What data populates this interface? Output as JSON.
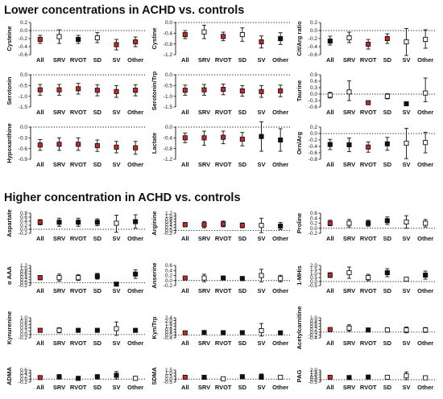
{
  "headings": {
    "lower": "Lower concentrations in ACHD vs. controls",
    "higher": "Higher concentration in ACHD vs. controls"
  },
  "colors": {
    "red": "#c62828",
    "black": "#111111",
    "white": "#ffffff"
  },
  "groups": [
    "All",
    "SRV",
    "RVOT",
    "SD",
    "SV",
    "Other"
  ],
  "marker_fill": [
    "red",
    "white",
    "black",
    "white",
    "black",
    "black"
  ],
  "chart_data": [
    {
      "type": "scatter",
      "ylabel": "Cysteine",
      "ylim": [
        -0.6,
        0.2
      ],
      "yticks": [
        "-0.6",
        "-0.4",
        "-0.2",
        "0.0",
        "0.2"
      ],
      "fill": [
        "red",
        "white",
        "black",
        "white",
        "red",
        "red"
      ],
      "points": [
        {
          "y": -0.22,
          "lo": -0.32,
          "hi": -0.12
        },
        {
          "y": -0.15,
          "lo": -0.32,
          "hi": 0.02
        },
        {
          "y": -0.22,
          "lo": -0.32,
          "hi": -0.12
        },
        {
          "y": -0.18,
          "lo": -0.3,
          "hi": -0.05
        },
        {
          "y": -0.35,
          "lo": -0.48,
          "hi": -0.22
        },
        {
          "y": -0.28,
          "lo": -0.4,
          "hi": -0.16
        }
      ]
    },
    {
      "type": "scatter",
      "ylabel": "Cystine",
      "ylim": [
        -1.2,
        0.0
      ],
      "yticks": [
        "-1.2",
        "-0.8",
        "-0.4",
        "0.0"
      ],
      "fill": [
        "red",
        "white",
        "red",
        "white",
        "red",
        "black"
      ],
      "points": [
        {
          "y": -0.45,
          "lo": -0.6,
          "hi": -0.3
        },
        {
          "y": -0.35,
          "lo": -0.6,
          "hi": -0.1
        },
        {
          "y": -0.52,
          "lo": -0.68,
          "hi": -0.36
        },
        {
          "y": -0.45,
          "lo": -0.7,
          "hi": -0.2
        },
        {
          "y": -0.72,
          "lo": -0.95,
          "hi": -0.5
        },
        {
          "y": -0.6,
          "lo": -0.82,
          "hi": -0.38
        }
      ]
    },
    {
      "type": "scatter",
      "ylabel": "Cit/Arg ratio",
      "ylim": [
        -0.6,
        0.2
      ],
      "yticks": [
        "-0.6",
        "-0.4",
        "-0.2",
        "0.0",
        "0.2"
      ],
      "fill": [
        "black",
        "white",
        "red",
        "red",
        "white",
        "white"
      ],
      "points": [
        {
          "y": -0.26,
          "lo": -0.36,
          "hi": -0.14
        },
        {
          "y": -0.18,
          "lo": -0.3,
          "hi": -0.04
        },
        {
          "y": -0.34,
          "lo": -0.46,
          "hi": -0.22
        },
        {
          "y": -0.2,
          "lo": -0.32,
          "hi": -0.08
        },
        {
          "y": -0.28,
          "lo": -0.62,
          "hi": 0.05
        },
        {
          "y": -0.22,
          "lo": -0.44,
          "hi": 0.02
        }
      ]
    },
    {
      "type": "scatter",
      "ylabel": "Serotonin",
      "ylim": [
        -1.5,
        0.0
      ],
      "yticks": [
        "-1.5",
        "-1.0",
        "-0.5",
        "0.0"
      ],
      "fill": [
        "red",
        "red",
        "red",
        "red",
        "red",
        "red"
      ],
      "points": [
        {
          "y": -0.7,
          "lo": -0.95,
          "hi": -0.45
        },
        {
          "y": -0.7,
          "lo": -0.95,
          "hi": -0.45
        },
        {
          "y": -0.65,
          "lo": -0.9,
          "hi": -0.4
        },
        {
          "y": -0.72,
          "lo": -0.98,
          "hi": -0.46
        },
        {
          "y": -0.78,
          "lo": -1.05,
          "hi": -0.5
        },
        {
          "y": -0.72,
          "lo": -0.98,
          "hi": -0.46
        }
      ]
    },
    {
      "type": "scatter",
      "ylabel": "Serotonin/Trp",
      "ylim": [
        -1.5,
        0.0
      ],
      "yticks": [
        "-1.5",
        "-1.0",
        "-0.5",
        "0.0"
      ],
      "fill": [
        "red",
        "red",
        "red",
        "red",
        "red",
        "red"
      ],
      "points": [
        {
          "y": -0.72,
          "lo": -0.95,
          "hi": -0.48
        },
        {
          "y": -0.7,
          "lo": -0.95,
          "hi": -0.45
        },
        {
          "y": -0.68,
          "lo": -0.93,
          "hi": -0.43
        },
        {
          "y": -0.75,
          "lo": -1.0,
          "hi": -0.5
        },
        {
          "y": -0.78,
          "lo": -1.05,
          "hi": -0.5
        },
        {
          "y": -0.75,
          "lo": -1.02,
          "hi": -0.48
        }
      ]
    },
    {
      "type": "scatter",
      "ylabel": "Taurine",
      "ylim": [
        -0.6,
        0.9
      ],
      "yticks": [
        "-0.6",
        "-0.3",
        "0.0",
        "0.3",
        "0.6",
        "0.9"
      ],
      "fill": [
        "white",
        "white",
        "red",
        "white",
        "black",
        "white"
      ],
      "points": [
        {
          "y": -0.05,
          "lo": -0.18,
          "hi": 0.08
        },
        {
          "y": 0.1,
          "lo": -0.3,
          "hi": 0.62
        },
        {
          "y": -0.4,
          "lo": -0.48,
          "hi": -0.32
        },
        {
          "y": -0.1,
          "lo": -0.22,
          "hi": 0.02
        },
        {
          "y": -0.45,
          "lo": -0.52,
          "hi": -0.38
        },
        {
          "y": 0.05,
          "lo": -0.35,
          "hi": 0.75
        }
      ]
    },
    {
      "type": "scatter",
      "ylabel": "Hypoxanthine",
      "ylim": [
        -0.9,
        0.0
      ],
      "yticks": [
        "-0.9",
        "-0.6",
        "-0.3",
        "0.0"
      ],
      "fill": [
        "red",
        "red",
        "red",
        "red",
        "red",
        "red"
      ],
      "points": [
        {
          "y": -0.5,
          "lo": -0.65,
          "hi": -0.35
        },
        {
          "y": -0.48,
          "lo": -0.65,
          "hi": -0.3
        },
        {
          "y": -0.48,
          "lo": -0.65,
          "hi": -0.3
        },
        {
          "y": -0.52,
          "lo": -0.68,
          "hi": -0.36
        },
        {
          "y": -0.56,
          "lo": -0.72,
          "hi": -0.4
        },
        {
          "y": -0.58,
          "lo": -0.76,
          "hi": -0.4
        }
      ]
    },
    {
      "type": "scatter",
      "ylabel": "Lactate",
      "ylim": [
        -1.2,
        0.0
      ],
      "yticks": [
        "-1.2",
        "-0.8",
        "-0.4",
        "0.0"
      ],
      "fill": [
        "red",
        "red",
        "red",
        "red",
        "black",
        "black"
      ],
      "points": [
        {
          "y": -0.4,
          "lo": -0.58,
          "hi": -0.22
        },
        {
          "y": -0.4,
          "lo": -0.68,
          "hi": -0.15
        },
        {
          "y": -0.38,
          "lo": -0.62,
          "hi": -0.15
        },
        {
          "y": -0.45,
          "lo": -0.7,
          "hi": -0.2
        },
        {
          "y": -0.35,
          "lo": -0.9,
          "hi": 0.2
        },
        {
          "y": -0.48,
          "lo": -0.9,
          "hi": -0.06
        }
      ]
    },
    {
      "type": "scatter",
      "ylabel": "Orn/Arg",
      "ylim": [
        -0.8,
        0.2
      ],
      "yticks": [
        "-0.8",
        "-0.6",
        "-0.4",
        "-0.2",
        "0.0",
        "0.2"
      ],
      "fill": [
        "black",
        "black",
        "red",
        "black",
        "white",
        "white"
      ],
      "points": [
        {
          "y": -0.34,
          "lo": -0.5,
          "hi": -0.18
        },
        {
          "y": -0.35,
          "lo": -0.56,
          "hi": -0.14
        },
        {
          "y": -0.42,
          "lo": -0.58,
          "hi": -0.26
        },
        {
          "y": -0.32,
          "lo": -0.52,
          "hi": -0.12
        },
        {
          "y": -0.3,
          "lo": -0.78,
          "hi": 0.16
        },
        {
          "y": -0.28,
          "lo": -0.6,
          "hi": 0.04
        }
      ]
    },
    {
      "type": "scatter",
      "ylabel": "Aspartate",
      "ylim": [
        -0.2,
        0.8
      ],
      "yticks": [
        "-0.2",
        "0.0",
        "0.2",
        "0.4",
        "0.6",
        "0.8"
      ],
      "fill": [
        "red",
        "black",
        "black",
        "black",
        "white",
        "black"
      ],
      "points": [
        {
          "y": 0.35,
          "lo": 0.22,
          "hi": 0.48
        },
        {
          "y": 0.35,
          "lo": 0.15,
          "hi": 0.55
        },
        {
          "y": 0.35,
          "lo": 0.15,
          "hi": 0.55
        },
        {
          "y": 0.35,
          "lo": 0.18,
          "hi": 0.52
        },
        {
          "y": 0.3,
          "lo": -0.15,
          "hi": 0.7
        },
        {
          "y": 0.38,
          "lo": 0.05,
          "hi": 0.72
        }
      ]
    },
    {
      "type": "scatter",
      "ylabel": "Arginine",
      "ylim": [
        -0.2,
        1.2
      ],
      "yticks": [
        "-0.2",
        "0.0",
        "0.2",
        "0.4",
        "0.6",
        "0.8",
        "1.0",
        "1.2"
      ],
      "fill": [
        "red",
        "red",
        "red",
        "red",
        "white",
        "black"
      ],
      "points": [
        {
          "y": 0.4,
          "lo": 0.25,
          "hi": 0.55
        },
        {
          "y": 0.4,
          "lo": 0.18,
          "hi": 0.62
        },
        {
          "y": 0.45,
          "lo": 0.25,
          "hi": 0.65
        },
        {
          "y": 0.35,
          "lo": 0.18,
          "hi": 0.52
        },
        {
          "y": 0.35,
          "lo": -0.15,
          "hi": 0.85
        },
        {
          "y": 0.3,
          "lo": 0.05,
          "hi": 0.55
        }
      ]
    },
    {
      "type": "scatter",
      "ylabel": "Proline",
      "ylim": [
        -0.2,
        0.6
      ],
      "yticks": [
        "-0.2",
        "0.0",
        "0.2",
        "0.4",
        "0.6"
      ],
      "fill": [
        "red",
        "white",
        "black",
        "black",
        "white",
        "white"
      ],
      "points": [
        {
          "y": 0.2,
          "lo": 0.1,
          "hi": 0.32
        },
        {
          "y": 0.2,
          "lo": 0.05,
          "hi": 0.35
        },
        {
          "y": 0.2,
          "lo": 0.08,
          "hi": 0.32
        },
        {
          "y": 0.3,
          "lo": 0.15,
          "hi": 0.45
        },
        {
          "y": 0.25,
          "lo": 0.0,
          "hi": 0.5
        },
        {
          "y": 0.2,
          "lo": 0.05,
          "hi": 0.35
        }
      ]
    },
    {
      "type": "scatter",
      "ylabel": "α AAA",
      "ylim": [
        -0.2,
        1.2
      ],
      "yticks": [
        "-0.2",
        "0.0",
        "0.2",
        "0.4",
        "0.6",
        "0.8",
        "1.0",
        "1.2"
      ],
      "fill": [
        "red",
        "white",
        "white",
        "black",
        "black",
        "black"
      ],
      "points": [
        {
          "y": 0.35,
          "lo": 0.2,
          "hi": 0.5
        },
        {
          "y": 0.35,
          "lo": 0.1,
          "hi": 0.6
        },
        {
          "y": 0.35,
          "lo": 0.15,
          "hi": 0.55
        },
        {
          "y": 0.45,
          "lo": 0.25,
          "hi": 0.65
        },
        {
          "y": -0.1,
          "lo": -0.2,
          "hi": 0.0
        },
        {
          "y": 0.6,
          "lo": 0.3,
          "hi": 0.9
        }
      ]
    },
    {
      "type": "scatter",
      "ylabel": "Anserine",
      "ylim": [
        -0.2,
        0.6
      ],
      "yticks": [
        "-0.2",
        "0.0",
        "0.2",
        "0.4",
        "0.6"
      ],
      "fill": [
        "red",
        "white",
        "black",
        "black",
        "white",
        "white"
      ],
      "points": [
        {
          "y": 0.1,
          "lo": 0.04,
          "hi": 0.16
        },
        {
          "y": 0.1,
          "lo": -0.05,
          "hi": 0.25
        },
        {
          "y": 0.1,
          "lo": 0.02,
          "hi": 0.18
        },
        {
          "y": 0.08,
          "lo": 0.0,
          "hi": 0.16
        },
        {
          "y": 0.2,
          "lo": -0.05,
          "hi": 0.45
        },
        {
          "y": 0.08,
          "lo": -0.05,
          "hi": 0.21
        }
      ]
    },
    {
      "type": "scatter",
      "ylabel": "1-MHis",
      "ylim": [
        -0.5,
        2.0
      ],
      "yticks": [
        "-0.5",
        "0.0",
        "0.5",
        "1.0",
        "1.5",
        "2.0"
      ],
      "fill": [
        "red",
        "white",
        "white",
        "black",
        "white",
        "black"
      ],
      "points": [
        {
          "y": 0.8,
          "lo": 0.5,
          "hi": 1.1
        },
        {
          "y": 1.1,
          "lo": 0.4,
          "hi": 1.8
        },
        {
          "y": 0.5,
          "lo": 0.1,
          "hi": 0.9
        },
        {
          "y": 1.1,
          "lo": 0.6,
          "hi": 1.6
        },
        {
          "y": 0.3,
          "lo": 0.05,
          "hi": 0.55
        },
        {
          "y": 0.8,
          "lo": 0.3,
          "hi": 1.3
        }
      ]
    },
    {
      "type": "scatter",
      "ylabel": "Kynurenine",
      "ylim": [
        -0.2,
        1.0
      ],
      "yticks": [
        "-0.2",
        "0.0",
        "0.2",
        "0.4",
        "0.6",
        "0.8",
        "1.0"
      ],
      "fill": [
        "red",
        "white",
        "black",
        "black",
        "white",
        "black"
      ],
      "points": [
        {
          "y": 0.25,
          "lo": 0.2,
          "hi": 0.3
        },
        {
          "y": 0.25,
          "lo": 0.1,
          "hi": 0.4
        },
        {
          "y": 0.25,
          "lo": 0.2,
          "hi": 0.3
        },
        {
          "y": 0.25,
          "lo": 0.15,
          "hi": 0.35
        },
        {
          "y": 0.35,
          "lo": -0.05,
          "hi": 0.75
        },
        {
          "y": 0.25,
          "lo": 0.15,
          "hi": 0.35
        }
      ]
    },
    {
      "type": "scatter",
      "ylabel": "Kyn/Trp",
      "ylim": [
        -0.4,
        2.4
      ],
      "yticks": [
        "-0.4",
        "0.0",
        "0.4",
        "0.8",
        "1.2",
        "1.6",
        "2.0",
        "2.4"
      ],
      "fill": [
        "red",
        "black",
        "black",
        "black",
        "white",
        "black"
      ],
      "points": [
        {
          "y": 0.3,
          "lo": 0.18,
          "hi": 0.42
        },
        {
          "y": 0.35,
          "lo": 0.15,
          "hi": 0.55
        },
        {
          "y": 0.32,
          "lo": 0.15,
          "hi": 0.49
        },
        {
          "y": 0.32,
          "lo": 0.15,
          "hi": 0.49
        },
        {
          "y": 0.6,
          "lo": -0.15,
          "hi": 1.6
        },
        {
          "y": 0.3,
          "lo": 0.1,
          "hi": 0.5
        }
      ]
    },
    {
      "type": "scatter",
      "ylabel": "Acetylcarnitine",
      "ylim": [
        -0.4,
        1.0
      ],
      "yticks": [
        "-0.4",
        "-0.2",
        "0.0",
        "0.2",
        "0.4",
        "0.6",
        "0.8",
        "1.0"
      ],
      "fill": [
        "red",
        "white",
        "black",
        "white",
        "white",
        "white"
      ],
      "points": [
        {
          "y": 0.18,
          "lo": 0.08,
          "hi": 0.28
        },
        {
          "y": 0.28,
          "lo": 0.05,
          "hi": 0.51
        },
        {
          "y": 0.15,
          "lo": 0.03,
          "hi": 0.27
        },
        {
          "y": 0.15,
          "lo": 0.0,
          "hi": 0.3
        },
        {
          "y": 0.15,
          "lo": -0.05,
          "hi": 0.35
        },
        {
          "y": 0.15,
          "lo": -0.02,
          "hi": 0.32
        }
      ]
    },
    {
      "type": "scatter",
      "ylabel": "ADMA",
      "ylim": [
        -0.2,
        0.6
      ],
      "yticks": [
        "-0.2",
        "0.0",
        "0.2",
        "0.4",
        "0.6"
      ],
      "fill": [
        "red",
        "black",
        "black",
        "black",
        "black",
        "white"
      ],
      "points": [
        {
          "y": 0.1,
          "lo": 0.04,
          "hi": 0.16
        },
        {
          "y": 0.15,
          "lo": 0.0,
          "hi": 0.3
        },
        {
          "y": 0.05,
          "lo": -0.08,
          "hi": 0.18
        },
        {
          "y": 0.15,
          "lo": 0.0,
          "hi": 0.3
        },
        {
          "y": 0.25,
          "lo": 0.0,
          "hi": 0.5
        },
        {
          "y": 0.05,
          "lo": -0.08,
          "hi": 0.18
        }
      ]
    },
    {
      "type": "scatter",
      "ylabel": "SDMA",
      "ylim": [
        -0.5,
        1.5
      ],
      "yticks": [
        "-0.5",
        "0.0",
        "0.5",
        "1.0",
        "1.5"
      ],
      "fill": [
        "red",
        "black",
        "white",
        "black",
        "black",
        "white"
      ],
      "points": [
        {
          "y": 0.3,
          "lo": 0.1,
          "hi": 0.5
        },
        {
          "y": 0.3,
          "lo": 0.0,
          "hi": 0.6
        },
        {
          "y": 0.05,
          "lo": -0.2,
          "hi": 0.3
        },
        {
          "y": 0.4,
          "lo": 0.1,
          "hi": 0.7
        },
        {
          "y": 0.4,
          "lo": -0.05,
          "hi": 0.85
        },
        {
          "y": 0.3,
          "lo": 0.0,
          "hi": 0.6
        }
      ]
    },
    {
      "type": "scatter",
      "ylabel": "PAG",
      "ylim": [
        -0.5,
        2.0
      ],
      "yticks": [
        "-0.5",
        "0.0",
        "0.5",
        "1.0",
        "1.5",
        "2.0"
      ],
      "fill": [
        "red",
        "black",
        "black",
        "white",
        "white",
        "white"
      ],
      "points": [
        {
          "y": 0.5,
          "lo": 0.25,
          "hi": 0.75
        },
        {
          "y": 0.45,
          "lo": 0.15,
          "hi": 0.75
        },
        {
          "y": 0.55,
          "lo": 0.25,
          "hi": 0.85
        },
        {
          "y": 0.5,
          "lo": 0.15,
          "hi": 0.85
        },
        {
          "y": 0.8,
          "lo": 0.0,
          "hi": 1.6
        },
        {
          "y": 0.4,
          "lo": 0.0,
          "hi": 0.8
        }
      ]
    }
  ]
}
